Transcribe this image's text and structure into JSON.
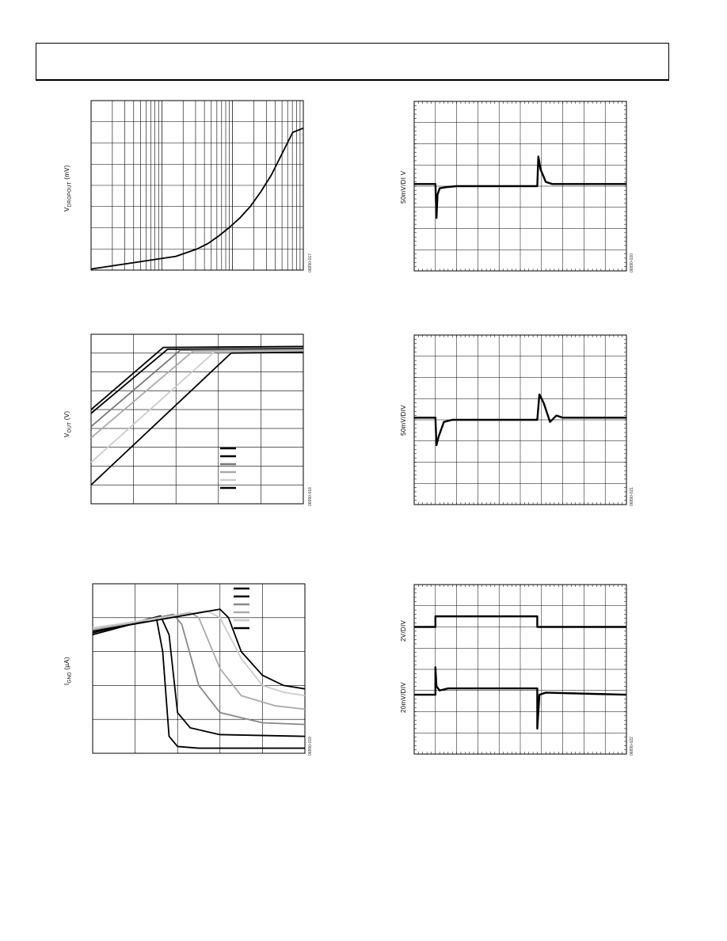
{
  "header": {
    "text": ""
  },
  "chart_data": [
    {
      "id": "dropout-vs-load",
      "type": "line",
      "ylabel_main": "V",
      "ylabel_sub": "DROPOUT",
      "ylabel_unit": " (mV)",
      "figure_id": "06890-017",
      "xscale": "log",
      "xlim": [
        0,
        1
      ],
      "ylim": [
        0,
        8
      ],
      "series": [
        {
          "x": [
            0,
            0.1,
            0.2,
            0.3,
            0.4,
            0.5,
            0.55,
            0.6,
            0.65,
            0.7,
            0.75,
            0.8,
            0.85,
            0.9,
            0.95,
            1.0
          ],
          "y": [
            0.05,
            0.2,
            0.35,
            0.5,
            0.65,
            1.0,
            1.25,
            1.6,
            2.0,
            2.45,
            3.0,
            3.7,
            4.5,
            5.5,
            6.5,
            6.7
          ]
        }
      ],
      "grid": true
    },
    {
      "id": "vout-vs-vin",
      "type": "line",
      "ylabel_main": "V",
      "ylabel_sub": "OUT",
      "ylabel_unit": " (V)",
      "figure_id": "06890-018",
      "xlim": [
        0,
        5
      ],
      "ylim": [
        0,
        9
      ],
      "legend": {
        "placement": "bottom-right",
        "entries": [
          "",
          "",
          "",
          "",
          "",
          ""
        ]
      },
      "series": [
        {
          "color": "#000000",
          "x": [
            0,
            1.7,
            5
          ],
          "y": [
            5.0,
            8.3,
            8.35
          ]
        },
        {
          "color": "#000000",
          "x": [
            0,
            1.8,
            5
          ],
          "y": [
            4.8,
            8.2,
            8.25
          ]
        },
        {
          "color": "#777777",
          "x": [
            0,
            2.1,
            5
          ],
          "y": [
            4.1,
            8.15,
            8.2
          ]
        },
        {
          "color": "#aaaaaa",
          "x": [
            0,
            2.4,
            5
          ],
          "y": [
            3.5,
            8.1,
            8.15
          ]
        },
        {
          "color": "#cccccc",
          "x": [
            0,
            2.9,
            5
          ],
          "y": [
            2.2,
            8.05,
            8.1
          ]
        },
        {
          "color": "#000000",
          "x": [
            0,
            3.3,
            5
          ],
          "y": [
            1.0,
            8.0,
            8.05
          ]
        }
      ],
      "grid": true
    },
    {
      "id": "ignd-vs-vin",
      "type": "line",
      "ylabel_main": "I",
      "ylabel_sub": "GND",
      "ylabel_unit": " (µA)",
      "figure_id": "06890-019",
      "xlim": [
        0,
        5
      ],
      "ylim": [
        0,
        5
      ],
      "legend": {
        "placement": "top-right",
        "entries": [
          "",
          "",
          "",
          "",
          "",
          ""
        ]
      },
      "series": [
        {
          "color": "#000000",
          "x": [
            0,
            1.5,
            1.65,
            1.8,
            2.0,
            2.5,
            5
          ],
          "y": [
            3.5,
            4.0,
            3.0,
            0.5,
            0.2,
            0.15,
            0.15
          ]
        },
        {
          "color": "#000000",
          "x": [
            0,
            1.6,
            1.8,
            2.0,
            2.3,
            3.0,
            5
          ],
          "y": [
            3.55,
            4.05,
            3.5,
            1.2,
            0.75,
            0.55,
            0.5
          ]
        },
        {
          "color": "#888888",
          "x": [
            0,
            1.9,
            2.1,
            2.5,
            3.0,
            4.0,
            5
          ],
          "y": [
            3.6,
            4.1,
            3.8,
            2.0,
            1.2,
            0.9,
            0.85
          ]
        },
        {
          "color": "#aaaaaa",
          "x": [
            0,
            2.3,
            2.5,
            3.0,
            3.5,
            4.3,
            5
          ],
          "y": [
            3.65,
            4.15,
            4.0,
            2.5,
            1.7,
            1.4,
            1.3
          ]
        },
        {
          "color": "#cccccc",
          "x": [
            0,
            2.7,
            3.0,
            3.5,
            4.0,
            4.5,
            5
          ],
          "y": [
            3.7,
            4.2,
            4.0,
            2.8,
            2.0,
            1.8,
            1.7
          ]
        },
        {
          "color": "#000000",
          "x": [
            0,
            3.0,
            3.2,
            3.5,
            4.0,
            4.5,
            5
          ],
          "y": [
            3.6,
            4.25,
            4.0,
            3.0,
            2.3,
            2.0,
            1.9
          ]
        }
      ],
      "grid": true
    },
    {
      "id": "load-transient-1",
      "type": "line",
      "ylabel_main": "50mV/DI V",
      "figure_id": "06890-020",
      "xlim": [
        0,
        10
      ],
      "ylim": [
        0,
        8
      ],
      "grid": true,
      "series": [
        {
          "x": [
            0,
            1.0,
            1.05,
            1.1,
            1.2,
            1.5,
            2.0,
            5.8,
            5.85,
            5.95,
            6.2,
            6.5,
            10
          ],
          "y": [
            4.1,
            4.1,
            2.5,
            3.6,
            3.9,
            3.95,
            4.0,
            4.0,
            5.4,
            4.8,
            4.2,
            4.1,
            4.1
          ]
        }
      ]
    },
    {
      "id": "load-transient-2",
      "type": "line",
      "ylabel_main": "50mV/DIV",
      "figure_id": "06890-021",
      "xlim": [
        0,
        10
      ],
      "ylim": [
        0,
        8
      ],
      "grid": true,
      "series": [
        {
          "x": [
            0,
            1.0,
            1.05,
            1.15,
            1.4,
            1.8,
            5.8,
            5.9,
            6.1,
            6.4,
            6.7,
            7.0,
            10
          ],
          "y": [
            4.1,
            4.1,
            2.8,
            3.2,
            3.9,
            4.0,
            4.0,
            5.2,
            4.8,
            3.9,
            4.2,
            4.1,
            4.1
          ]
        }
      ]
    },
    {
      "id": "line-transient",
      "type": "line",
      "ylabel_upper": "2V/DIV",
      "ylabel_lower": "20mV/DIV",
      "figure_id": "06890-022",
      "xlim": [
        0,
        10
      ],
      "ylim": [
        0,
        8
      ],
      "grid": true,
      "series": [
        {
          "x": [
            0,
            1.0,
            1.0,
            5.8,
            5.8,
            10
          ],
          "y": [
            6.0,
            6.0,
            6.5,
            6.5,
            6.0,
            6.0
          ]
        },
        {
          "x": [
            0,
            1.0,
            1.0,
            1.05,
            1.2,
            1.6,
            5.8,
            5.8,
            5.9,
            6.2,
            10
          ],
          "y": [
            2.8,
            2.8,
            4.1,
            3.2,
            3.0,
            3.1,
            3.1,
            1.2,
            2.8,
            2.9,
            2.8
          ]
        }
      ]
    }
  ]
}
